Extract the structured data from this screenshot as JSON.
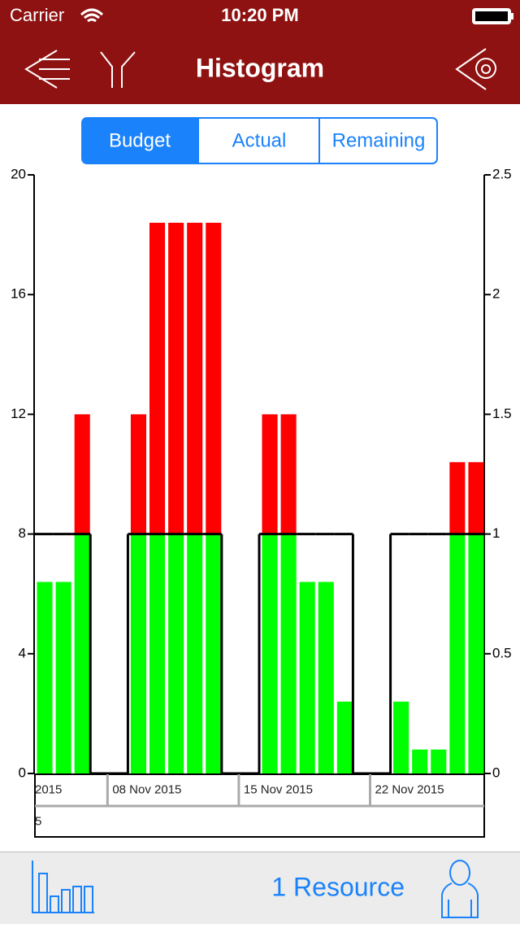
{
  "status_bar": {
    "carrier": "Carrier",
    "time": "10:20 PM"
  },
  "nav_bar": {
    "title": "Histogram"
  },
  "segments": [
    "Budget",
    "Actual",
    "Remaining"
  ],
  "footer": {
    "resources": "1 Resource"
  },
  "chart_data": {
    "type": "bar",
    "stacked": true,
    "week_labels": [
      "2015",
      "08 Nov 2015",
      "15 Nov 2015",
      "22 Nov 2015"
    ],
    "month_label": "5",
    "series": [
      {
        "color": "#00ff00",
        "values": [
          6.4,
          6.4,
          8,
          null,
          null,
          8,
          8,
          8,
          8,
          8,
          null,
          null,
          8,
          8,
          6.4,
          6.4,
          2.4,
          null,
          null,
          2.4,
          0.8,
          0.8,
          8,
          8
        ]
      },
      {
        "color": "#ff0000",
        "values": [
          null,
          null,
          4,
          null,
          null,
          4,
          10.4,
          10.4,
          10.4,
          10.4,
          null,
          null,
          4,
          4,
          null,
          null,
          null,
          null,
          null,
          null,
          null,
          null,
          2.4,
          2.4
        ]
      },
      {
        "color": "#000000",
        "type": "step",
        "values": [
          8,
          8,
          8,
          0,
          0,
          8,
          8,
          8,
          8,
          8,
          0,
          0,
          8,
          8,
          8,
          8,
          8,
          0,
          0,
          8,
          8,
          8,
          8,
          8
        ]
      }
    ],
    "ylim": [
      0,
      20
    ],
    "yticks": [
      0,
      4,
      8,
      12,
      16,
      20
    ],
    "y2lim": [
      0,
      2.5
    ],
    "y2ticks": [
      0,
      0.5,
      1,
      1.5,
      2,
      2.5
    ],
    "grid": false
  }
}
